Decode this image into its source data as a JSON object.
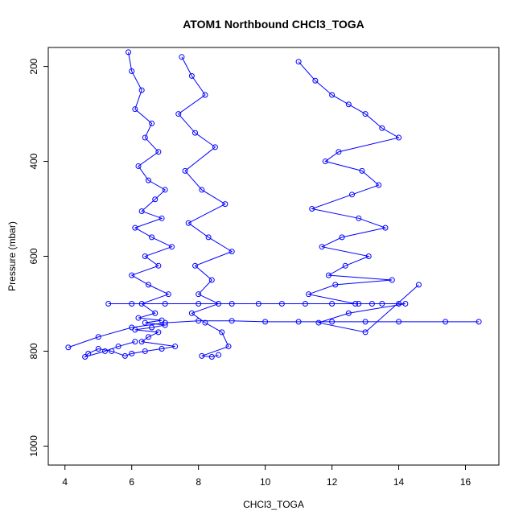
{
  "chart_data": {
    "type": "scatter",
    "title": "ATOM1 Northbound CHCl3_TOGA",
    "xlabel": "CHCl3_TOGA",
    "ylabel": "Pressure (mbar)",
    "xlim": [
      3.5,
      17.0
    ],
    "ylim": [
      1040,
      160
    ],
    "y_reversed": true,
    "grid": false,
    "x_ticks": [
      4,
      6,
      8,
      10,
      12,
      14,
      16
    ],
    "x_tick_labels": [
      "4",
      "6",
      "8",
      "10",
      "12",
      "14",
      "16"
    ],
    "y_ticks": [
      200,
      400,
      600,
      800,
      1000
    ],
    "y_tick_labels": [
      "200",
      "400",
      "600",
      "800",
      "1000"
    ],
    "series_color": "#0000ff",
    "marker": "open-circle",
    "line_connected": true,
    "series": [
      {
        "x": [
          5.9,
          6.0,
          6.3,
          6.1,
          6.6,
          6.4,
          6.8,
          6.2,
          6.5,
          7.0,
          6.7,
          6.3,
          6.9,
          6.1,
          6.6,
          7.2,
          6.4,
          6.8,
          6.0,
          6.5,
          7.1,
          6.3,
          6.7,
          6.2,
          6.9,
          6.4,
          7.0,
          6.6,
          6.1,
          6.8,
          6.5,
          6.3,
          7.3,
          6.9,
          6.4,
          6.0,
          5.8,
          5.4,
          5.0,
          4.7,
          4.6,
          5.2,
          5.6,
          6.1
        ],
        "y": [
          170,
          210,
          250,
          290,
          320,
          350,
          380,
          410,
          440,
          460,
          480,
          505,
          520,
          540,
          560,
          580,
          600,
          620,
          640,
          660,
          680,
          700,
          720,
          730,
          735,
          740,
          745,
          750,
          755,
          760,
          770,
          780,
          790,
          795,
          800,
          805,
          810,
          800,
          795,
          805,
          812,
          800,
          790,
          780
        ]
      },
      {
        "x": [
          7.5,
          7.8,
          8.2,
          7.4,
          7.9,
          8.5,
          7.6,
          8.1,
          8.8,
          7.7,
          8.3,
          9.0,
          7.9,
          8.4,
          8.0,
          8.6,
          7.8,
          8.2,
          8.7,
          8.9,
          8.1,
          8.4,
          8.6
        ],
        "y": [
          180,
          220,
          260,
          300,
          340,
          370,
          420,
          460,
          490,
          530,
          560,
          590,
          620,
          650,
          680,
          700,
          720,
          740,
          760,
          790,
          810,
          812,
          808
        ]
      },
      {
        "x": [
          11.0,
          11.5,
          12.0,
          12.5,
          13.0,
          13.5,
          14.0,
          12.2,
          11.8,
          12.9,
          13.4,
          12.6,
          11.4,
          12.8,
          13.6,
          12.3,
          11.7,
          13.1,
          12.4,
          11.9,
          13.8,
          12.1,
          11.3,
          12.7,
          13.2,
          14.2,
          12.5,
          11.6,
          13.0,
          14.6
        ],
        "y": [
          190,
          230,
          260,
          280,
          300,
          330,
          350,
          380,
          400,
          420,
          450,
          470,
          500,
          520,
          540,
          560,
          580,
          600,
          620,
          640,
          650,
          660,
          680,
          700,
          700,
          700,
          720,
          740,
          760,
          660
        ]
      },
      {
        "x": [
          4.1,
          5.0,
          6.0,
          7.0,
          8.0,
          9.0,
          10.0,
          11.0,
          12.0,
          13.0,
          14.0,
          15.4,
          16.4
        ],
        "y": [
          792,
          770,
          750,
          740,
          736,
          736,
          738,
          738,
          738,
          738,
          738,
          738,
          738
        ]
      },
      {
        "x": [
          5.3,
          6.0,
          7.0,
          8.0,
          9.0,
          9.8,
          10.5,
          11.2,
          12.0,
          12.8,
          13.5,
          14.0
        ],
        "y": [
          700,
          700,
          700,
          700,
          700,
          700,
          700,
          700,
          700,
          700,
          700,
          700
        ]
      }
    ]
  }
}
